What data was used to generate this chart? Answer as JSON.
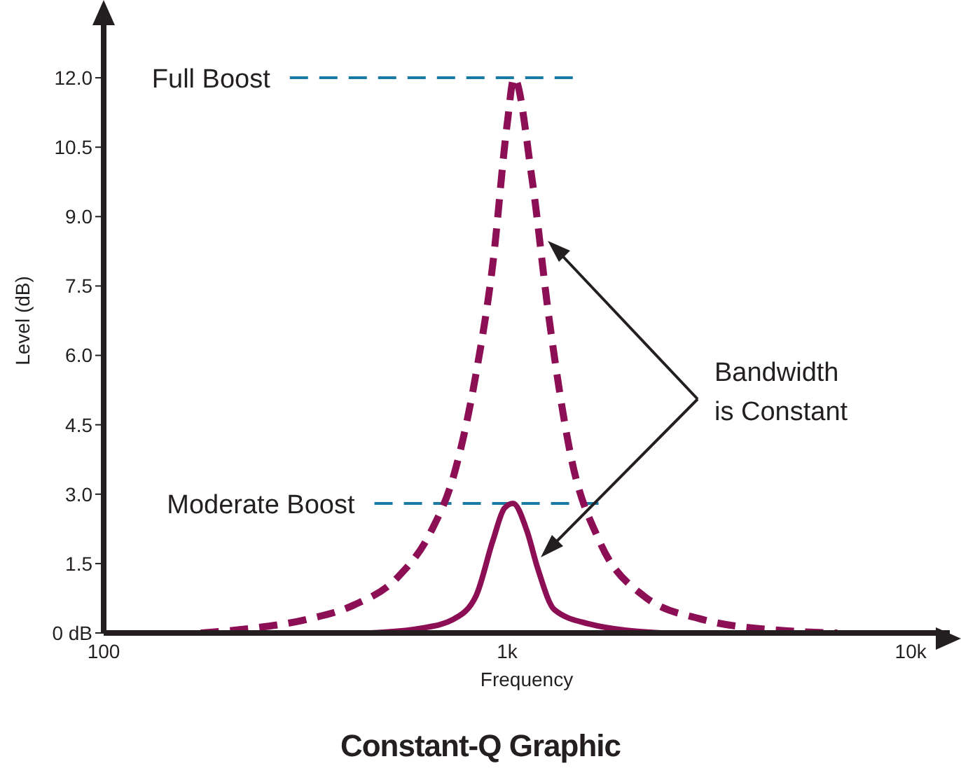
{
  "chart_data": {
    "type": "line",
    "title": "Constant-Q Graphic",
    "xlabel": "Frequency",
    "ylabel": "Level (dB)",
    "log": "x",
    "xlim": [
      100,
      12500
    ],
    "xticks": [
      100,
      {
        "value": 1000,
        "label": "1k"
      },
      {
        "value": 10000,
        "label": "10k"
      }
    ],
    "ylim": [
      0,
      13.5
    ],
    "yticks": [
      {
        "value": 0,
        "label": "0 dB"
      },
      1.5,
      {
        "value": 3,
        "label": "3.0"
      },
      4.5,
      {
        "value": 6,
        "label": "6.0"
      },
      7.5,
      {
        "value": 9,
        "label": "9.0"
      },
      10.5,
      {
        "value": 12,
        "label": "12.0"
      }
    ],
    "series": [
      {
        "color": "#8c0f55",
        "line_style": "dashed",
        "x": [
          174,
          233,
          321,
          416,
          535,
          648,
          737,
          837,
          922,
          1000,
          1040,
          1153,
          1270,
          1440,
          1690,
          2180,
          3020,
          4880,
          6580
        ],
        "values": [
          0,
          0.1,
          0.3,
          0.6,
          1.2,
          2.2,
          3.4,
          5.6,
          8.0,
          11.0,
          12.0,
          9.8,
          6.8,
          3.8,
          2.0,
          0.8,
          0.3,
          0.05,
          0
        ]
      },
      {
        "color": "#8c0f55",
        "line_style": "solid",
        "x": [
          457,
          610,
          737,
          837,
          922,
          985,
          1034,
          1120,
          1190,
          1310,
          1590,
          2410
        ],
        "values": [
          0,
          0.1,
          0.3,
          0.8,
          2.0,
          2.7,
          2.8,
          2.2,
          1.4,
          0.5,
          0.2,
          0
        ]
      }
    ],
    "ref_lines": [
      {
        "axis": "y",
        "value": 12,
        "label": "Full Boost",
        "color": "#1b7aa3",
        "line_style": "dashed"
      },
      {
        "axis": "y",
        "value": 2.8,
        "label": "Moderate Boost",
        "color": "#1b7aa3",
        "line_style": "dashed"
      }
    ],
    "annotations": [
      "Bandwidth is Constant"
    ]
  }
}
